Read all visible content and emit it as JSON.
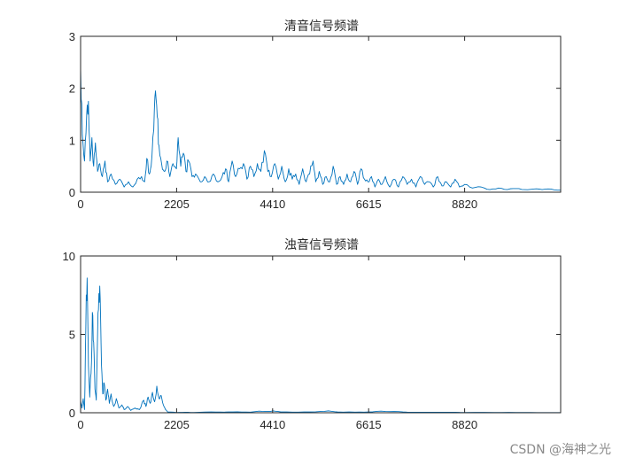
{
  "chart_data": [
    {
      "type": "line",
      "title": "清音信号频谱",
      "xlabel": "",
      "ylabel": "",
      "xlim": [
        0,
        11025
      ],
      "ylim": [
        0,
        3
      ],
      "xticks": [
        "0",
        "2205",
        "4410",
        "6615",
        "8820"
      ],
      "xtick_values": [
        0,
        2205,
        4410,
        6615,
        8820
      ],
      "yticks": [
        "0",
        "1",
        "2",
        "3"
      ],
      "ytick_values": [
        0,
        1,
        2,
        3
      ],
      "grid": false,
      "color": "#0072bd",
      "series": [
        {
          "keypoints": [
            [
              0,
              2.4
            ],
            [
              40,
              1.1
            ],
            [
              90,
              0.6
            ],
            [
              140,
              1.5
            ],
            [
              180,
              1.75
            ],
            [
              220,
              0.6
            ],
            [
              260,
              1.05
            ],
            [
              300,
              0.5
            ],
            [
              340,
              0.95
            ],
            [
              390,
              0.4
            ],
            [
              440,
              0.55
            ],
            [
              500,
              0.3
            ],
            [
              560,
              0.6
            ],
            [
              620,
              0.2
            ],
            [
              700,
              0.35
            ],
            [
              800,
              0.15
            ],
            [
              900,
              0.25
            ],
            [
              1000,
              0.1
            ],
            [
              1100,
              0.2
            ],
            [
              1200,
              0.1
            ],
            [
              1300,
              0.25
            ],
            [
              1400,
              0.3
            ],
            [
              1470,
              0.2
            ],
            [
              1520,
              0.65
            ],
            [
              1580,
              0.35
            ],
            [
              1620,
              0.5
            ],
            [
              1680,
              1.2
            ],
            [
              1720,
              1.95
            ],
            [
              1760,
              1.45
            ],
            [
              1800,
              0.9
            ],
            [
              1860,
              0.55
            ],
            [
              1920,
              0.4
            ],
            [
              1980,
              0.6
            ],
            [
              2050,
              0.3
            ],
            [
              2120,
              0.55
            ],
            [
              2200,
              0.45
            ],
            [
              2240,
              1.05
            ],
            [
              2300,
              0.5
            ],
            [
              2360,
              0.75
            ],
            [
              2420,
              0.4
            ],
            [
              2480,
              0.6
            ],
            [
              2560,
              0.3
            ],
            [
              2640,
              0.35
            ],
            [
              2750,
              0.2
            ],
            [
              2850,
              0.3
            ],
            [
              2950,
              0.2
            ],
            [
              3050,
              0.35
            ],
            [
              3150,
              0.2
            ],
            [
              3250,
              0.3
            ],
            [
              3330,
              0.45
            ],
            [
              3400,
              0.2
            ],
            [
              3480,
              0.6
            ],
            [
              3560,
              0.3
            ],
            [
              3650,
              0.45
            ],
            [
              3740,
              0.55
            ],
            [
              3820,
              0.25
            ],
            [
              3900,
              0.5
            ],
            [
              3980,
              0.3
            ],
            [
              4060,
              0.55
            ],
            [
              4140,
              0.4
            ],
            [
              4220,
              0.8
            ],
            [
              4300,
              0.4
            ],
            [
              4380,
              0.3
            ],
            [
              4460,
              0.55
            ],
            [
              4540,
              0.25
            ],
            [
              4620,
              0.5
            ],
            [
              4700,
              0.2
            ],
            [
              4780,
              0.45
            ],
            [
              4860,
              0.25
            ],
            [
              4940,
              0.35
            ],
            [
              5020,
              0.15
            ],
            [
              5100,
              0.45
            ],
            [
              5180,
              0.2
            ],
            [
              5260,
              0.35
            ],
            [
              5340,
              0.6
            ],
            [
              5400,
              0.2
            ],
            [
              5480,
              0.4
            ],
            [
              5560,
              0.15
            ],
            [
              5640,
              0.3
            ],
            [
              5720,
              0.2
            ],
            [
              5800,
              0.5
            ],
            [
              5880,
              0.15
            ],
            [
              5960,
              0.3
            ],
            [
              6040,
              0.15
            ],
            [
              6120,
              0.35
            ],
            [
              6200,
              0.2
            ],
            [
              6280,
              0.4
            ],
            [
              6360,
              0.15
            ],
            [
              6440,
              0.45
            ],
            [
              6520,
              0.25
            ],
            [
              6600,
              0.2
            ],
            [
              6680,
              0.3
            ],
            [
              6760,
              0.1
            ],
            [
              6840,
              0.25
            ],
            [
              6920,
              0.15
            ],
            [
              7000,
              0.3
            ],
            [
              7100,
              0.1
            ],
            [
              7200,
              0.25
            ],
            [
              7300,
              0.1
            ],
            [
              7400,
              0.3
            ],
            [
              7500,
              0.15
            ],
            [
              7600,
              0.25
            ],
            [
              7700,
              0.1
            ],
            [
              7800,
              0.3
            ],
            [
              7900,
              0.15
            ],
            [
              8000,
              0.2
            ],
            [
              8100,
              0.1
            ],
            [
              8200,
              0.3
            ],
            [
              8300,
              0.12
            ],
            [
              8400,
              0.2
            ],
            [
              8500,
              0.1
            ],
            [
              8600,
              0.25
            ],
            [
              8700,
              0.1
            ],
            [
              8820,
              0.15
            ],
            [
              9000,
              0.08
            ],
            [
              9200,
              0.1
            ],
            [
              9400,
              0.05
            ],
            [
              9600,
              0.08
            ],
            [
              9800,
              0.05
            ],
            [
              10000,
              0.07
            ],
            [
              10200,
              0.05
            ],
            [
              10400,
              0.06
            ],
            [
              10600,
              0.05
            ],
            [
              10800,
              0.06
            ],
            [
              11025,
              0.04
            ]
          ]
        }
      ]
    },
    {
      "type": "line",
      "title": "浊音信号频谱",
      "xlabel": "",
      "ylabel": "",
      "xlim": [
        0,
        11025
      ],
      "ylim": [
        0,
        10
      ],
      "xticks": [
        "0",
        "2205",
        "4410",
        "6615",
        "8820"
      ],
      "xtick_values": [
        0,
        2205,
        4410,
        6615,
        8820
      ],
      "yticks": [
        "0",
        "5",
        "10"
      ],
      "ytick_values": [
        0,
        5,
        10
      ],
      "grid": false,
      "color": "#0072bd",
      "series": [
        {
          "keypoints": [
            [
              0,
              0.8
            ],
            [
              30,
              0.3
            ],
            [
              60,
              0.9
            ],
            [
              90,
              0.2
            ],
            [
              120,
              5.5
            ],
            [
              150,
              8.6
            ],
            [
              180,
              3.0
            ],
            [
              210,
              1.0
            ],
            [
              240,
              2.5
            ],
            [
              270,
              6.4
            ],
            [
              300,
              4.5
            ],
            [
              330,
              1.5
            ],
            [
              360,
              0.8
            ],
            [
              390,
              5.0
            ],
            [
              420,
              7.6
            ],
            [
              450,
              7.3
            ],
            [
              480,
              3.0
            ],
            [
              510,
              1.2
            ],
            [
              540,
              1.9
            ],
            [
              580,
              0.8
            ],
            [
              620,
              1.5
            ],
            [
              660,
              0.6
            ],
            [
              700,
              1.2
            ],
            [
              760,
              0.4
            ],
            [
              820,
              0.9
            ],
            [
              880,
              0.3
            ],
            [
              950,
              0.5
            ],
            [
              1000,
              0.2
            ],
            [
              1080,
              0.4
            ],
            [
              1150,
              0.15
            ],
            [
              1250,
              0.3
            ],
            [
              1350,
              0.2
            ],
            [
              1450,
              0.8
            ],
            [
              1500,
              0.4
            ],
            [
              1550,
              1.0
            ],
            [
              1600,
              0.6
            ],
            [
              1650,
              1.3
            ],
            [
              1700,
              0.7
            ],
            [
              1750,
              1.7
            ],
            [
              1800,
              0.9
            ],
            [
              1850,
              1.1
            ],
            [
              1900,
              0.5
            ],
            [
              1950,
              0.2
            ],
            [
              2000,
              0.05
            ],
            [
              2200,
              0.02
            ],
            [
              2400,
              0.03
            ],
            [
              2600,
              0.02
            ],
            [
              3000,
              0.05
            ],
            [
              3300,
              0.04
            ],
            [
              3600,
              0.06
            ],
            [
              3900,
              0.04
            ],
            [
              4100,
              0.1
            ],
            [
              4300,
              0.08
            ],
            [
              4410,
              0.12
            ],
            [
              4600,
              0.05
            ],
            [
              5000,
              0.04
            ],
            [
              5400,
              0.06
            ],
            [
              5700,
              0.12
            ],
            [
              5900,
              0.05
            ],
            [
              6300,
              0.04
            ],
            [
              6615,
              0.05
            ],
            [
              6900,
              0.1
            ],
            [
              7200,
              0.08
            ],
            [
              7500,
              0.04
            ],
            [
              8000,
              0.03
            ],
            [
              8500,
              0.03
            ],
            [
              8820,
              0.02
            ],
            [
              9500,
              0.02
            ],
            [
              10000,
              0.02
            ],
            [
              10500,
              0.01
            ],
            [
              11025,
              0.01
            ]
          ]
        }
      ]
    }
  ],
  "watermark": "CSDN @海神之光"
}
